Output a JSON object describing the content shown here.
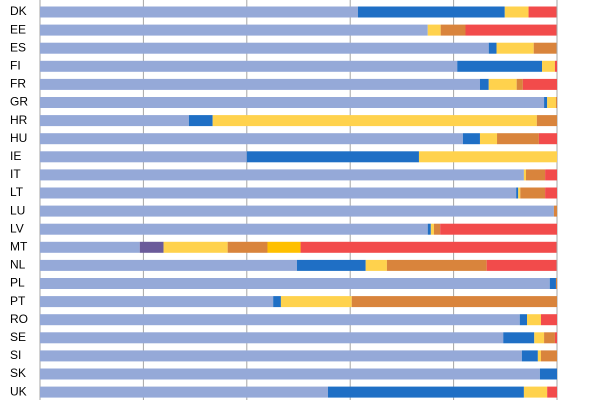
{
  "chart_data": {
    "type": "stacked-bar-horizontal",
    "categories": [
      "DK",
      "EE",
      "ES",
      "FI",
      "FR",
      "GR",
      "HR",
      "HU",
      "IE",
      "IT",
      "LT",
      "LU",
      "LV",
      "MT",
      "NL",
      "PL",
      "PT",
      "RO",
      "SE",
      "SI",
      "SK",
      "UK"
    ],
    "series": [
      {
        "color": "#95a9d8",
        "values": [
          61.5,
          75,
          86.8,
          80.7,
          85.1,
          97.5,
          28.8,
          81.8,
          40,
          93.6,
          92.1,
          99.4,
          75,
          19.3,
          49.7,
          98.6,
          45.1,
          92.8,
          89.6,
          93.2,
          96.7,
          55.7
        ]
      },
      {
        "color": "#6b5b9a",
        "values": [
          0,
          0,
          0,
          0,
          0,
          0,
          0,
          0,
          0,
          0,
          0,
          0,
          0,
          4.6,
          0,
          0,
          0,
          0,
          0,
          0,
          0,
          0
        ]
      },
      {
        "color": "#1f6fc5",
        "values": [
          28.4,
          0,
          1.5,
          16.4,
          1.7,
          0.6,
          4.6,
          3.3,
          33.3,
          0,
          0.4,
          0,
          0.6,
          0,
          13.3,
          1.2,
          1.5,
          1.4,
          6,
          3.1,
          3.3,
          37.9
        ]
      },
      {
        "color": "#ffd24d",
        "values": [
          4.6,
          2.5,
          7.2,
          2.5,
          5.4,
          1.7,
          62.7,
          3.3,
          26.7,
          0.4,
          0.4,
          0,
          0.6,
          12.4,
          4.1,
          0,
          13.7,
          2.7,
          1.9,
          0.6,
          0,
          4.5
        ]
      },
      {
        "color": "#d9843c",
        "values": [
          0,
          4.8,
          4.4,
          0,
          1.2,
          0.2,
          3.9,
          8.1,
          0,
          3.7,
          4.8,
          0.6,
          1.2,
          7.7,
          19.3,
          0.2,
          39.7,
          0,
          2.1,
          3.1,
          0,
          0
        ]
      },
      {
        "color": "#ffc000",
        "values": [
          0,
          0,
          0,
          0,
          0,
          0,
          0,
          0,
          0,
          0,
          0,
          0,
          0,
          6.4,
          0,
          0,
          0,
          0,
          0,
          0,
          0,
          0
        ]
      },
      {
        "color": "#f24b4b",
        "values": [
          5.4,
          17.6,
          0,
          0.4,
          6.6,
          0,
          0,
          3.5,
          0,
          2.3,
          2.3,
          0,
          22.6,
          49.5,
          13.5,
          0,
          0,
          3.1,
          0.4,
          0,
          0,
          1.9
        ]
      }
    ],
    "xlim": [
      0,
      100
    ],
    "xticks": [
      0,
      20,
      40,
      60,
      80,
      100
    ],
    "grid": true
  }
}
